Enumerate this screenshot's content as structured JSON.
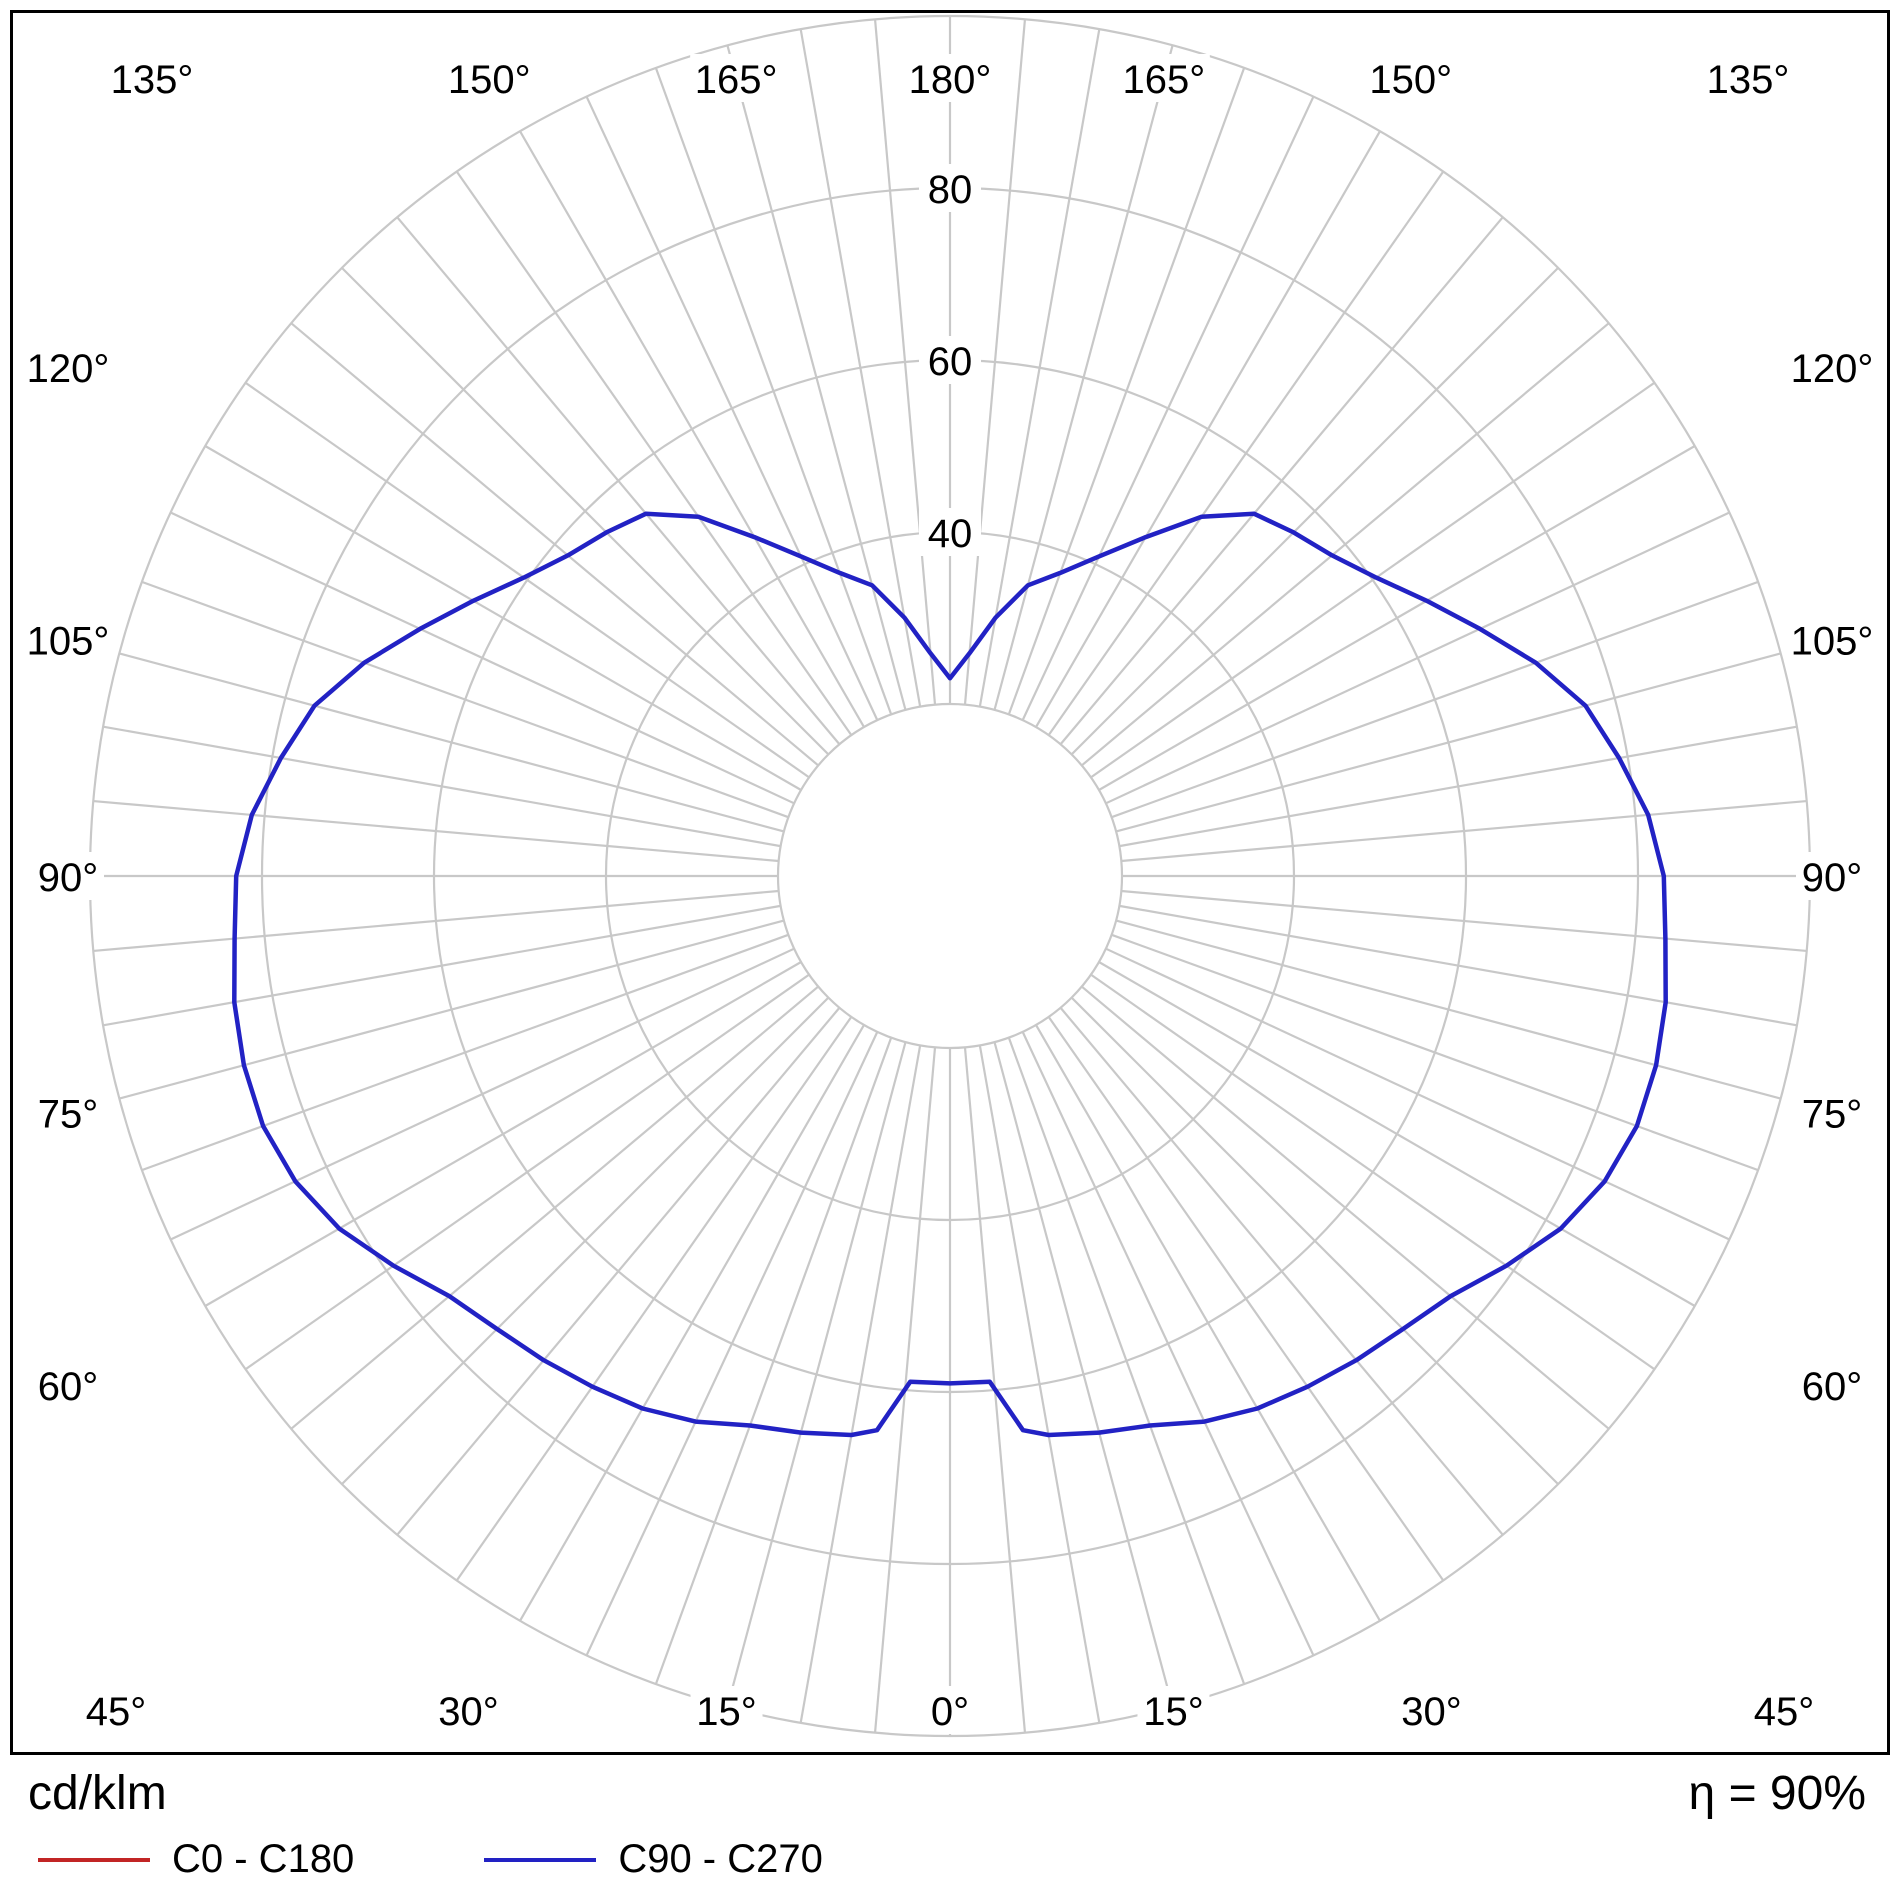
{
  "chart_data": {
    "type": "polar-photometric",
    "units_label": "cd/klm",
    "efficiency_label": "η = 90%",
    "max_value": 100,
    "ring_values": [
      20,
      40,
      60,
      80,
      100
    ],
    "ring_ticks": [
      {
        "value": 40,
        "label": "40"
      },
      {
        "value": 60,
        "label": "60"
      },
      {
        "value": 80,
        "label": "80"
      }
    ],
    "grid_angle_step": 5,
    "angle_label_values": [
      0,
      15,
      30,
      45,
      60,
      75,
      90,
      105,
      120,
      135,
      150,
      165,
      180
    ],
    "angle_labels": [
      "0°",
      "15°",
      "30°",
      "45°",
      "60°",
      "75°",
      "90°",
      "105°",
      "120°",
      "135°",
      "150°",
      "165°",
      "180°"
    ],
    "grid_color": "#c8c8c8",
    "series": [
      {
        "name": "C90 - C270",
        "color": "#2222c4",
        "symmetric": true,
        "angles_deg": [
          0,
          4.5,
          7.5,
          10,
          15,
          20,
          25,
          30,
          35,
          40,
          45,
          50,
          55,
          60,
          65,
          70,
          75,
          80,
          85,
          90,
          95,
          100,
          105,
          110,
          115,
          120,
          125,
          130,
          135,
          140,
          145,
          150,
          155,
          160,
          165,
          170,
          175,
          180
        ],
        "values_cd_per_klm": [
          59,
          59,
          65,
          66,
          67,
          68,
          70,
          71.5,
          72.5,
          73.5,
          74.5,
          76,
          79,
          82,
          84,
          85,
          85,
          84.5,
          83.5,
          83,
          81.5,
          79,
          76.5,
          72.5,
          68,
          64,
          60.5,
          58,
          56.5,
          55,
          51,
          45.5,
          41,
          37.5,
          35,
          30.5,
          26,
          23
        ]
      }
    ],
    "legend": [
      {
        "label": "C0 - C180",
        "color": "#c22525"
      },
      {
        "label": "C90 - C270",
        "color": "#2222c4"
      }
    ]
  }
}
